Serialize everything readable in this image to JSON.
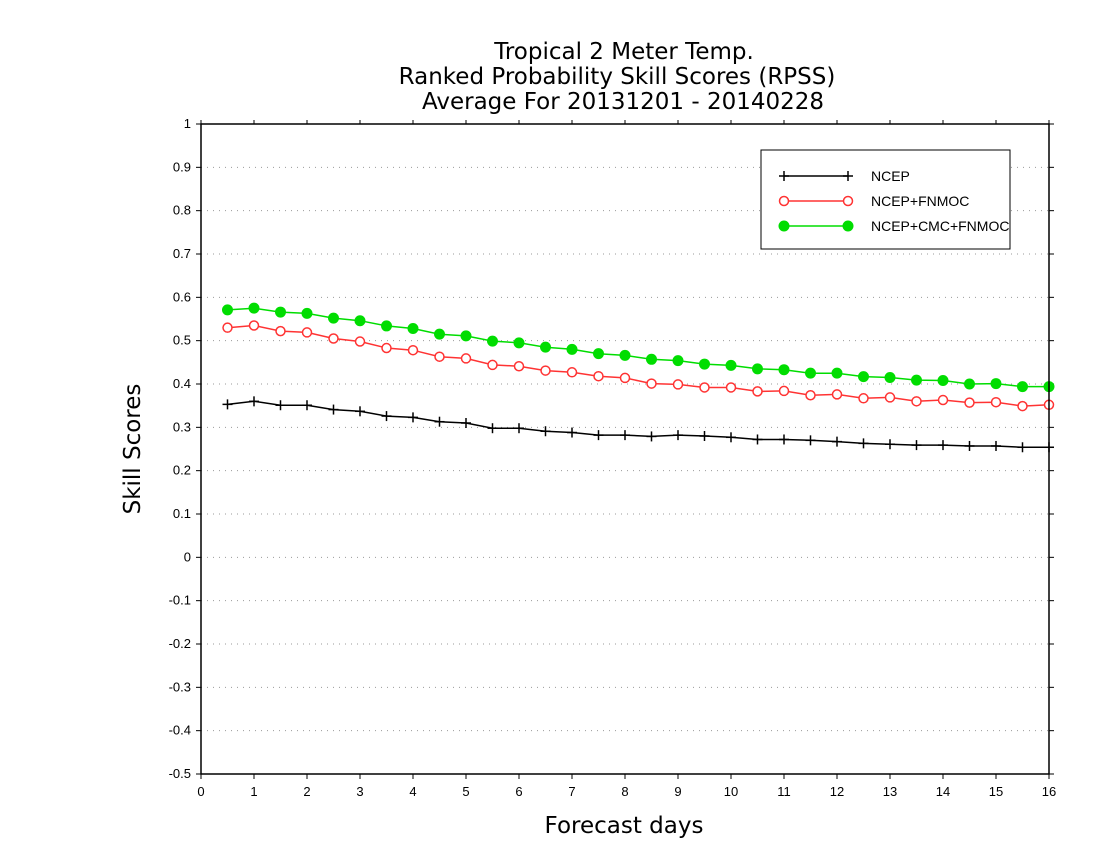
{
  "chart_data": {
    "type": "line",
    "title_lines": [
      "Tropical 2 Meter Temp.",
      "Ranked Probability Skill Scores (RPSS)",
      "Average For 20131201 - 20140228"
    ],
    "xlabel": "Forecast days",
    "ylabel": "Skill Scores",
    "xlim": [
      0,
      16
    ],
    "ylim": [
      -0.5,
      1
    ],
    "x_ticks": [
      0,
      1,
      2,
      3,
      4,
      5,
      6,
      7,
      8,
      9,
      10,
      11,
      12,
      13,
      14,
      15,
      16
    ],
    "x_tick_labels": [
      "0",
      "1",
      "2",
      "3",
      "4",
      "5",
      "6",
      "7",
      "8",
      "9",
      "10",
      "11",
      "12",
      "13",
      "14",
      "15",
      "16"
    ],
    "y_ticks": [
      -0.5,
      -0.4,
      -0.3,
      -0.2,
      -0.1,
      0,
      0.1,
      0.2,
      0.3,
      0.4,
      0.5,
      0.6,
      0.7,
      0.8,
      0.9,
      1
    ],
    "y_tick_labels": [
      "-0.5",
      "-0.4",
      "-0.3",
      "-0.2",
      "-0.1",
      "0",
      "0.1",
      "0.2",
      "0.3",
      "0.4",
      "0.5",
      "0.6",
      "0.7",
      "0.8",
      "0.9",
      "1"
    ],
    "grid": "horizontal dotted",
    "legend_position": "top-right",
    "x": [
      0.5,
      1,
      1.5,
      2,
      2.5,
      3,
      3.5,
      4,
      4.5,
      5,
      5.5,
      6,
      6.5,
      7,
      7.5,
      8,
      8.5,
      9,
      9.5,
      10,
      10.5,
      11,
      11.5,
      12,
      12.5,
      13,
      13.5,
      14,
      14.5,
      15,
      15.5,
      16
    ],
    "series": [
      {
        "name": "NCEP",
        "color": "#000000",
        "marker": "plus",
        "values": [
          0.353,
          0.36,
          0.351,
          0.351,
          0.341,
          0.337,
          0.326,
          0.323,
          0.313,
          0.31,
          0.298,
          0.298,
          0.291,
          0.288,
          0.282,
          0.282,
          0.279,
          0.282,
          0.28,
          0.277,
          0.272,
          0.272,
          0.27,
          0.267,
          0.263,
          0.261,
          0.259,
          0.259,
          0.257,
          0.257,
          0.254,
          0.254
        ]
      },
      {
        "name": "NCEP+FNMOC",
        "color": "#ff3333",
        "marker": "open-circle",
        "values": [
          0.53,
          0.535,
          0.522,
          0.519,
          0.505,
          0.498,
          0.483,
          0.478,
          0.463,
          0.459,
          0.444,
          0.441,
          0.431,
          0.427,
          0.418,
          0.414,
          0.401,
          0.399,
          0.392,
          0.392,
          0.383,
          0.384,
          0.374,
          0.376,
          0.367,
          0.369,
          0.36,
          0.363,
          0.357,
          0.358,
          0.349,
          0.352
        ]
      },
      {
        "name": "NCEP+CMC+FNMOC",
        "color": "#00dd00",
        "marker": "filled-circle",
        "values": [
          0.571,
          0.575,
          0.566,
          0.563,
          0.552,
          0.546,
          0.534,
          0.528,
          0.515,
          0.511,
          0.499,
          0.495,
          0.485,
          0.48,
          0.47,
          0.466,
          0.457,
          0.454,
          0.446,
          0.443,
          0.435,
          0.433,
          0.425,
          0.425,
          0.417,
          0.415,
          0.409,
          0.408,
          0.4,
          0.401,
          0.394,
          0.394
        ]
      }
    ]
  }
}
